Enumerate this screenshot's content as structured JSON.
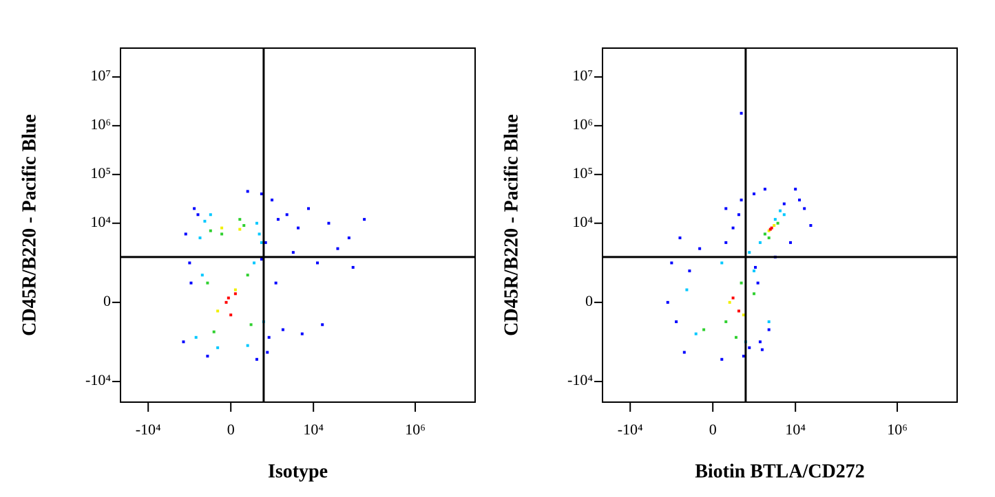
{
  "chart_data": [
    {
      "type": "scatter",
      "x_label": "Isotype",
      "y_label": "CD45R/B220 - Pacific Blue",
      "xlim": [
        -35000,
        15000000
      ],
      "ylim": [
        -26500,
        39000000
      ],
      "xticks": [
        {
          "value": -10000,
          "label": "-10⁴"
        },
        0,
        {
          "value": 10000,
          "label": "10⁴"
        },
        {
          "value": 1000000,
          "label": "10⁶"
        }
      ],
      "yticks": [
        {
          "value": -10000,
          "label": "-10⁴"
        },
        0,
        {
          "value": 10000,
          "label": "10⁴"
        },
        {
          "value": 100000,
          "label": "10⁵"
        },
        {
          "value": 1000000,
          "label": "10⁶"
        },
        {
          "value": 10000000,
          "label": "10⁷"
        }
      ],
      "gates": {
        "x": 1000,
        "y": 2000
      },
      "series": [
        {
          "color": "#0000ff",
          "x": [
            -1800,
            -1200,
            1500,
            2000,
            900,
            -1500,
            1200,
            3000,
            5000,
            8000,
            20000,
            50000,
            100000,
            30000,
            12000,
            2500,
            1800,
            -2000,
            700,
            4000,
            60000,
            15000,
            -1000,
            1100,
            -600,
            400,
            1300,
            -1400,
            6000,
            900
          ],
          "y": [
            6000,
            20000,
            30000,
            12000,
            40000,
            1500,
            -2500,
            15000,
            8000,
            20000,
            10000,
            5000,
            12000,
            3000,
            1500,
            -800,
            500,
            -1500,
            -3500,
            2500,
            1200,
            -600,
            15000,
            4000,
            -3000,
            45000,
            -1200,
            500,
            -1000,
            1800
          ]
        },
        {
          "color": "#00c8ff",
          "x": [
            -900,
            700,
            -500,
            900,
            -1100,
            600,
            -300,
            1000,
            -800,
            400,
            -700,
            800
          ],
          "y": [
            5000,
            10000,
            15000,
            4000,
            -1200,
            1500,
            -2000,
            -500,
            800,
            -1800,
            11000,
            6000
          ]
        },
        {
          "color": "#30d030",
          "x": [
            -500,
            300,
            -200,
            500,
            -600,
            400,
            -400,
            200
          ],
          "y": [
            7000,
            9000,
            6000,
            -600,
            500,
            800,
            -900,
            12000
          ]
        },
        {
          "color": "#f0f000",
          "x": [
            -200,
            200,
            -300,
            100
          ],
          "y": [
            8000,
            7500,
            -200,
            300
          ]
        },
        {
          "color": "#ff0000",
          "x": [
            -100,
            100,
            0,
            -50
          ],
          "y": [
            0,
            200,
            -300,
            100
          ]
        }
      ]
    },
    {
      "type": "scatter",
      "x_label": "Biotin BTLA/CD272",
      "y_label": "CD45R/B220 - Pacific Blue",
      "xlim": [
        -35000,
        15000000
      ],
      "ylim": [
        -26500,
        39000000
      ],
      "xticks": [
        {
          "value": -10000,
          "label": "-10⁴"
        },
        0,
        {
          "value": 10000,
          "label": "10⁴"
        },
        {
          "value": 1000000,
          "label": "10⁶"
        }
      ],
      "yticks": [
        {
          "value": -10000,
          "label": "-10⁴"
        },
        0,
        {
          "value": 10000,
          "label": "10⁴"
        },
        {
          "value": 100000,
          "label": "10⁵"
        },
        {
          "value": 1000000,
          "label": "10⁶"
        },
        {
          "value": 10000000,
          "label": "10⁷"
        }
      ],
      "gates": {
        "x": 1000,
        "y": 2000
      },
      "series": [
        {
          "color": "#0000ff",
          "x": [
            -1500,
            -1000,
            300,
            800,
            1500,
            2500,
            6000,
            12000,
            15000,
            -800,
            200,
            1200,
            2000,
            4000,
            8000,
            -1200,
            1800,
            3000,
            500,
            -300,
            20000,
            10000,
            900,
            -600,
            2200,
            -1800,
            700,
            800,
            1600,
            300
          ],
          "y": [
            1500,
            5000,
            20000,
            30000,
            40000,
            50000,
            25000,
            30000,
            20000,
            -2500,
            -3500,
            -2000,
            -1500,
            2000,
            4000,
            -500,
            500,
            -800,
            8000,
            3000,
            9000,
            50000,
            -3000,
            1000,
            -2200,
            0,
            15000,
            1800000,
            1200,
            4000
          ]
        },
        {
          "color": "#00c8ff",
          "x": [
            2000,
            4000,
            5000,
            -400,
            1500,
            1000,
            200,
            2500,
            -700,
            1200,
            3000,
            6000
          ],
          "y": [
            4000,
            12000,
            18000,
            -1000,
            1000,
            -1500,
            1500,
            6000,
            300,
            2500,
            -500,
            15000
          ]
        },
        {
          "color": "#30d030",
          "x": [
            2500,
            4500,
            300,
            800,
            -200,
            1500,
            600,
            3000
          ],
          "y": [
            6000,
            10000,
            -500,
            500,
            -800,
            200,
            -1200,
            5000
          ]
        },
        {
          "color": "#f0f000",
          "x": [
            3000,
            3800,
            400,
            900
          ],
          "y": [
            7000,
            9000,
            0,
            -300
          ]
        },
        {
          "color": "#ff0000",
          "x": [
            3400,
            3200,
            500,
            700
          ],
          "y": [
            8000,
            7500,
            100,
            -200
          ]
        }
      ]
    }
  ]
}
